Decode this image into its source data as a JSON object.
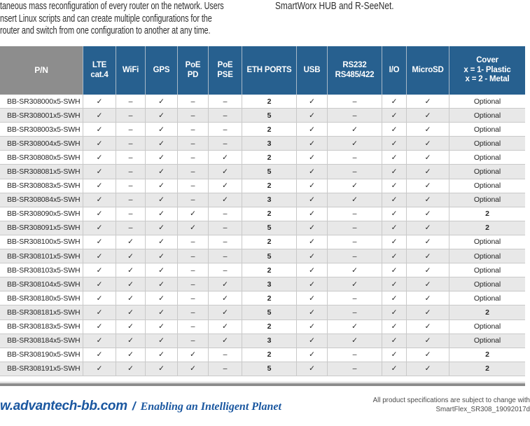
{
  "intro": {
    "left_lines": [
      "taneous mass reconfiguration of every router on the network. Users",
      "nsert Linux scripts and can create multiple configurations for the",
      "router and switch from one configuration to another at any time."
    ],
    "right_text": "SmartWorx HUB and R-SeeNet."
  },
  "table": {
    "columns": [
      "P/N",
      "LTE\ncat.4",
      "WiFi",
      "GPS",
      "PoE\nPD",
      "PoE\nPSE",
      "ETH PORTS",
      "USB",
      "RS232\nRS485/422",
      "I/O",
      "MicroSD",
      "Cover\nx = 1- Plastic\nx = 2 - Metal"
    ],
    "check_symbol": "✓",
    "dash_symbol": "–",
    "rows": [
      [
        "BB-SR308000x5-SWH",
        "✓",
        "–",
        "✓",
        "–",
        "–",
        "2",
        "✓",
        "–",
        "✓",
        "✓",
        "Optional"
      ],
      [
        "BB-SR308001x5-SWH",
        "✓",
        "–",
        "✓",
        "–",
        "–",
        "5",
        "✓",
        "–",
        "✓",
        "✓",
        "Optional"
      ],
      [
        "BB-SR308003x5-SWH",
        "✓",
        "–",
        "✓",
        "–",
        "–",
        "2",
        "✓",
        "✓",
        "✓",
        "✓",
        "Optional"
      ],
      [
        "BB-SR308004x5-SWH",
        "✓",
        "–",
        "✓",
        "–",
        "–",
        "3",
        "✓",
        "✓",
        "✓",
        "✓",
        "Optional"
      ],
      [
        "BB-SR308080x5-SWH",
        "✓",
        "–",
        "✓",
        "–",
        "✓",
        "2",
        "✓",
        "–",
        "✓",
        "✓",
        "Optional"
      ],
      [
        "BB-SR308081x5-SWH",
        "✓",
        "–",
        "✓",
        "–",
        "✓",
        "5",
        "✓",
        "–",
        "✓",
        "✓",
        "Optional"
      ],
      [
        "BB-SR308083x5-SWH",
        "✓",
        "–",
        "✓",
        "–",
        "✓",
        "2",
        "✓",
        "✓",
        "✓",
        "✓",
        "Optional"
      ],
      [
        "BB-SR308084x5-SWH",
        "✓",
        "–",
        "✓",
        "–",
        "✓",
        "3",
        "✓",
        "✓",
        "✓",
        "✓",
        "Optional"
      ],
      [
        "BB-SR308090x5-SWH",
        "✓",
        "–",
        "✓",
        "✓",
        "–",
        "2",
        "✓",
        "–",
        "✓",
        "✓",
        "2"
      ],
      [
        "BB-SR308091x5-SWH",
        "✓",
        "–",
        "✓",
        "✓",
        "–",
        "5",
        "✓",
        "–",
        "✓",
        "✓",
        "2"
      ],
      [
        "BB-SR308100x5-SWH",
        "✓",
        "✓",
        "✓",
        "–",
        "–",
        "2",
        "✓",
        "–",
        "✓",
        "✓",
        "Optional"
      ],
      [
        "BB-SR308101x5-SWH",
        "✓",
        "✓",
        "✓",
        "–",
        "–",
        "5",
        "✓",
        "–",
        "✓",
        "✓",
        "Optional"
      ],
      [
        "BB-SR308103x5-SWH",
        "✓",
        "✓",
        "✓",
        "–",
        "–",
        "2",
        "✓",
        "✓",
        "✓",
        "✓",
        "Optional"
      ],
      [
        "BB-SR308104x5-SWH",
        "✓",
        "✓",
        "✓",
        "–",
        "✓",
        "3",
        "✓",
        "✓",
        "✓",
        "✓",
        "Optional"
      ],
      [
        "BB-SR308180x5-SWH",
        "✓",
        "✓",
        "✓",
        "–",
        "✓",
        "2",
        "✓",
        "–",
        "✓",
        "✓",
        "Optional"
      ],
      [
        "BB-SR308181x5-SWH",
        "✓",
        "✓",
        "✓",
        "–",
        "✓",
        "5",
        "✓",
        "–",
        "✓",
        "✓",
        "2"
      ],
      [
        "BB-SR308183x5-SWH",
        "✓",
        "✓",
        "✓",
        "–",
        "✓",
        "2",
        "✓",
        "✓",
        "✓",
        "✓",
        "Optional"
      ],
      [
        "BB-SR308184x5-SWH",
        "✓",
        "✓",
        "✓",
        "–",
        "✓",
        "3",
        "✓",
        "✓",
        "✓",
        "✓",
        "Optional"
      ],
      [
        "BB-SR308190x5-SWH",
        "✓",
        "✓",
        "✓",
        "✓",
        "–",
        "2",
        "✓",
        "–",
        "✓",
        "✓",
        "2"
      ],
      [
        "BB-SR308191x5-SWH",
        "✓",
        "✓",
        "✓",
        "✓",
        "–",
        "5",
        "✓",
        "–",
        "✓",
        "✓",
        "2"
      ]
    ]
  },
  "footer": {
    "website": "w.advantech-bb.com",
    "separator": "/",
    "tagline": "Enabling an Intelligent Planet",
    "disclaimer_line1": "All product specifications are subject to change with",
    "disclaimer_line2": "SmartFlex_SR308_19092017d"
  },
  "colors": {
    "header_blue": "#27608f",
    "header_gray": "#8d8d8d",
    "row_stripe": "#e8e8e8",
    "footer_blue": "#1a57a0"
  }
}
